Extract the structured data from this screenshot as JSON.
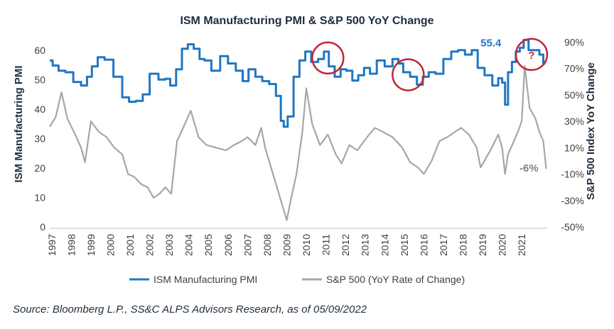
{
  "chart_data": {
    "type": "line",
    "title": "ISM Manufacturing  PMI & S&P 500 YoY Change",
    "ylabel_left": "ISM Manufacturing PMI",
    "ylabel_right": "S&P 500 Index YoY Change",
    "ylim_left": [
      0,
      65
    ],
    "yticks_left": [
      "0",
      "10",
      "20",
      "30",
      "40",
      "50",
      "60"
    ],
    "ylim_right": [
      -50,
      95
    ],
    "yticks_right": [
      "-50%",
      "-30%",
      "-10%",
      "10%",
      "30%",
      "50%",
      "70%",
      "90%"
    ],
    "xlim": [
      1997,
      2022.4
    ],
    "x_ticks": [
      "1997",
      "1998",
      "1999",
      "2000",
      "2001",
      "2002",
      "2003",
      "2004",
      "2005",
      "2006",
      "2007",
      "2008",
      "2009",
      "2010",
      "2011",
      "2012",
      "2013",
      "2014",
      "2015",
      "2016",
      "2017",
      "2018",
      "2019",
      "2020",
      "2021"
    ],
    "legend": {
      "position": "bottom",
      "items": [
        "ISM Manufacturing PMI",
        "S&P 500 (YoY Rate of Change)"
      ]
    },
    "colors": {
      "pmi": "#1f77c4",
      "sp500": "#a6a6a6",
      "circle": "#c0283a",
      "title": "#1f2d3d"
    },
    "series": [
      {
        "name": "ISM Manufacturing PMI",
        "axis": "left",
        "x": [
          1997.0,
          1997.3,
          1997.6,
          1998.0,
          1998.4,
          1998.8,
          1999.0,
          1999.3,
          1999.6,
          2000.0,
          2000.5,
          2000.9,
          2001.2,
          2001.6,
          2001.9,
          2002.3,
          2002.8,
          2003.0,
          2003.3,
          2003.6,
          2003.9,
          2004.2,
          2004.5,
          2004.8,
          2005.0,
          2005.5,
          2005.9,
          2006.3,
          2006.7,
          2007.0,
          2007.3,
          2007.7,
          2008.0,
          2008.4,
          2008.7,
          2008.9,
          2009.0,
          2009.3,
          2009.6,
          2009.9,
          2010.2,
          2010.5,
          2010.9,
          2011.1,
          2011.4,
          2011.7,
          2012.0,
          2012.3,
          2012.6,
          2012.9,
          2013.2,
          2013.5,
          2013.9,
          2014.3,
          2014.7,
          2014.9,
          2015.2,
          2015.6,
          2015.9,
          2016.2,
          2016.5,
          2016.9,
          2017.3,
          2017.7,
          2018.0,
          2018.4,
          2018.7,
          2019.0,
          2019.4,
          2019.8,
          2020.0,
          2020.2,
          2020.3,
          2020.5,
          2020.7,
          2020.9,
          2021.1,
          2021.3,
          2021.6,
          2021.9,
          2022.1,
          2022.3
        ],
        "values": [
          56.5,
          54.8,
          53.0,
          52.5,
          49.2,
          48.0,
          51.0,
          54.5,
          57.6,
          56.8,
          51.0,
          44.0,
          42.5,
          42.8,
          45.0,
          52.0,
          50.0,
          50.3,
          48.0,
          53.5,
          60.5,
          62.0,
          60.5,
          57.0,
          56.5,
          53.0,
          58.0,
          55.5,
          53.0,
          49.5,
          53.5,
          51.0,
          49.5,
          48.5,
          44.5,
          36.0,
          34.0,
          37.5,
          51.0,
          56.5,
          59.5,
          56.0,
          57.0,
          59.5,
          54.5,
          51.0,
          53.5,
          53.0,
          49.7,
          51.5,
          54.0,
          52.0,
          56.5,
          54.5,
          57.0,
          55.5,
          52.5,
          51.0,
          48.3,
          51.0,
          52.5,
          52.0,
          57.0,
          59.5,
          60.0,
          58.5,
          60.0,
          54.0,
          51.5,
          48.0,
          50.5,
          49.0,
          41.5,
          52.5,
          56.0,
          59.5,
          60.8,
          63.5,
          60.0,
          60.0,
          58.5,
          55.4
        ]
      },
      {
        "name": "S&P 500 (YoY Rate of Change)",
        "axis": "right",
        "x": [
          1997.0,
          1997.3,
          1997.6,
          1997.9,
          1998.3,
          1998.6,
          1998.8,
          1999.1,
          1999.5,
          1999.9,
          2000.3,
          2000.7,
          2001.0,
          2001.3,
          2001.7,
          2002.0,
          2002.3,
          2002.6,
          2002.9,
          2003.2,
          2003.5,
          2003.9,
          2004.2,
          2004.6,
          2005.0,
          2005.5,
          2006.0,
          2006.4,
          2006.8,
          2007.1,
          2007.5,
          2007.8,
          2008.0,
          2008.3,
          2008.6,
          2008.9,
          2009.1,
          2009.3,
          2009.6,
          2009.9,
          2010.1,
          2010.4,
          2010.8,
          2011.2,
          2011.6,
          2011.9,
          2012.3,
          2012.7,
          2013.2,
          2013.6,
          2014.0,
          2014.5,
          2015.0,
          2015.4,
          2015.8,
          2016.1,
          2016.5,
          2016.9,
          2017.3,
          2017.7,
          2018.0,
          2018.4,
          2018.8,
          2019.0,
          2019.5,
          2019.9,
          2020.1,
          2020.25,
          2020.4,
          2020.7,
          2020.9,
          2021.1,
          2021.25,
          2021.5,
          2021.8,
          2022.0,
          2022.2,
          2022.35
        ],
        "values": [
          26,
          33,
          52,
          32,
          20,
          10,
          -1,
          30,
          22,
          18,
          10,
          5,
          -10,
          -12,
          -18,
          -20,
          -28,
          -25,
          -20,
          -25,
          15,
          28,
          38,
          18,
          12,
          10,
          8,
          12,
          15,
          18,
          12,
          25,
          10,
          -5,
          -20,
          -35,
          -45,
          -30,
          -10,
          22,
          55,
          28,
          12,
          20,
          5,
          -2,
          12,
          8,
          18,
          25,
          22,
          18,
          10,
          -1,
          -5,
          -10,
          0,
          15,
          18,
          22,
          25,
          20,
          10,
          -5,
          8,
          20,
          10,
          -10,
          5,
          15,
          22,
          30,
          72,
          40,
          32,
          22,
          15,
          -6
        ]
      }
    ],
    "annotations": [
      {
        "text": "55.4",
        "color": "#1f77c4"
      },
      {
        "text": "-6%",
        "color": "#808080"
      },
      {
        "text": "?",
        "color": "#c0283a"
      }
    ],
    "highlight_circles_at_year": [
      2011.2,
      2015.3,
      2021.6
    ]
  },
  "source": "Source: Bloomberg L.P., SS&C ALPS Advisors Research, as of 05/09/2022"
}
